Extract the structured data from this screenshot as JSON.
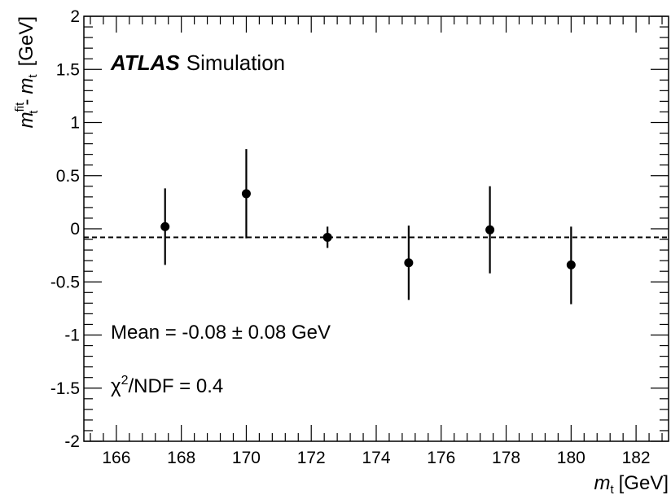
{
  "chart_data": {
    "type": "scatter",
    "x": [
      167.5,
      170,
      172.5,
      175,
      177.5,
      180
    ],
    "y": [
      0.02,
      0.33,
      -0.08,
      -0.32,
      -0.01,
      -0.34
    ],
    "yerr_low": [
      0.36,
      0.42,
      0.1,
      0.35,
      0.41,
      0.37
    ],
    "yerr_high": [
      0.36,
      0.42,
      0.1,
      0.35,
      0.41,
      0.36
    ],
    "reference_line": {
      "y": -0.08,
      "style": "dashed"
    },
    "xlim": [
      165,
      183
    ],
    "ylim": [
      -2,
      2
    ],
    "xticks": [
      166,
      168,
      170,
      172,
      174,
      176,
      178,
      180,
      182
    ],
    "yticks": [
      -2,
      -1.5,
      -1,
      -0.5,
      0,
      0.5,
      1,
      1.5,
      2
    ],
    "xlabel": {
      "var": "m",
      "sub": "t",
      "unit": "[GeV]"
    },
    "ylabel": {
      "var1": "m",
      "sup1": "fit",
      "sub1": "t",
      "sep": "-",
      "var2": "m",
      "sub2": "t",
      "unit": "[GeV]"
    },
    "grid": false,
    "annotations": {
      "experiment": "ATLAS",
      "label": "Simulation",
      "mean": "Mean = -0.08 ± 0.08 GeV",
      "chi_symbol": "χ",
      "chi_sup": "2",
      "chi_rest": "/NDF = 0.4"
    }
  }
}
